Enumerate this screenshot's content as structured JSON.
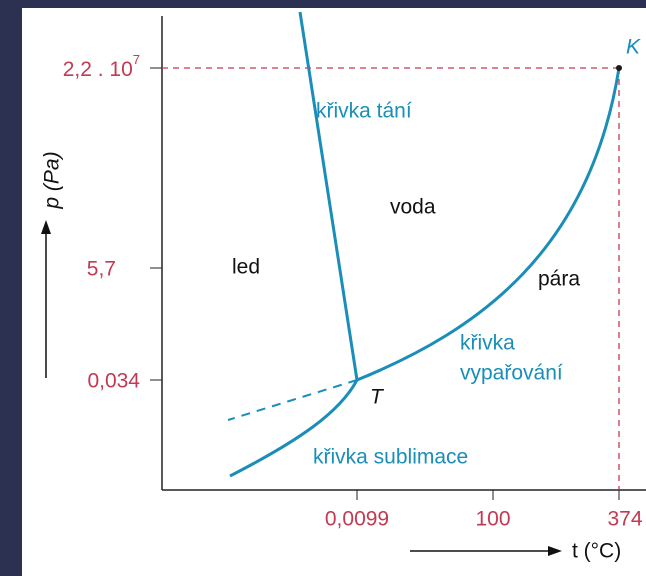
{
  "diagram": {
    "y_axis": {
      "label": "p (Pa)",
      "ticks": [
        {
          "base": "2,2 . 10",
          "exponent": "7"
        },
        {
          "base": "5,7"
        },
        {
          "base": "0,034"
        }
      ]
    },
    "x_axis": {
      "label": "t (°C)",
      "ticks": [
        "0,0099",
        "100",
        "374"
      ]
    },
    "regions": [
      "led",
      "voda",
      "pára"
    ],
    "curves": {
      "melting": "křivka tání",
      "vaporization": [
        "křivka",
        "vypařování"
      ],
      "sublimation": "křivka sublimace"
    },
    "points": {
      "critical": "K",
      "triple": "T"
    }
  }
}
